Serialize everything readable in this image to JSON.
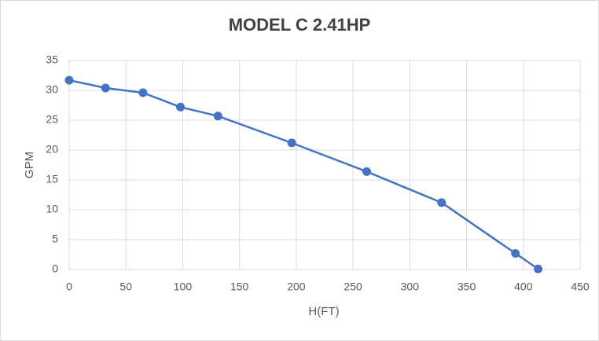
{
  "chart_data": {
    "type": "line",
    "title": "MODEL C 2.41HP",
    "x_label": "H(FT)",
    "y_label": "GPM",
    "x": [
      0,
      32,
      65,
      98,
      131,
      196,
      262,
      328,
      393,
      413
    ],
    "series": [
      {
        "name": "GPM",
        "color": "#4472c4",
        "values": [
          31.7,
          30.4,
          29.6,
          27.2,
          25.7,
          21.2,
          16.4,
          11.2,
          2.7,
          0.1
        ]
      }
    ],
    "xlim": [
      0,
      450
    ],
    "xticks": [
      0,
      50,
      100,
      150,
      200,
      250,
      300,
      350,
      400,
      450
    ],
    "ylim": [
      0,
      35
    ],
    "yticks": [
      0,
      5,
      10,
      15,
      20,
      25,
      30,
      35
    ],
    "grid": true
  }
}
